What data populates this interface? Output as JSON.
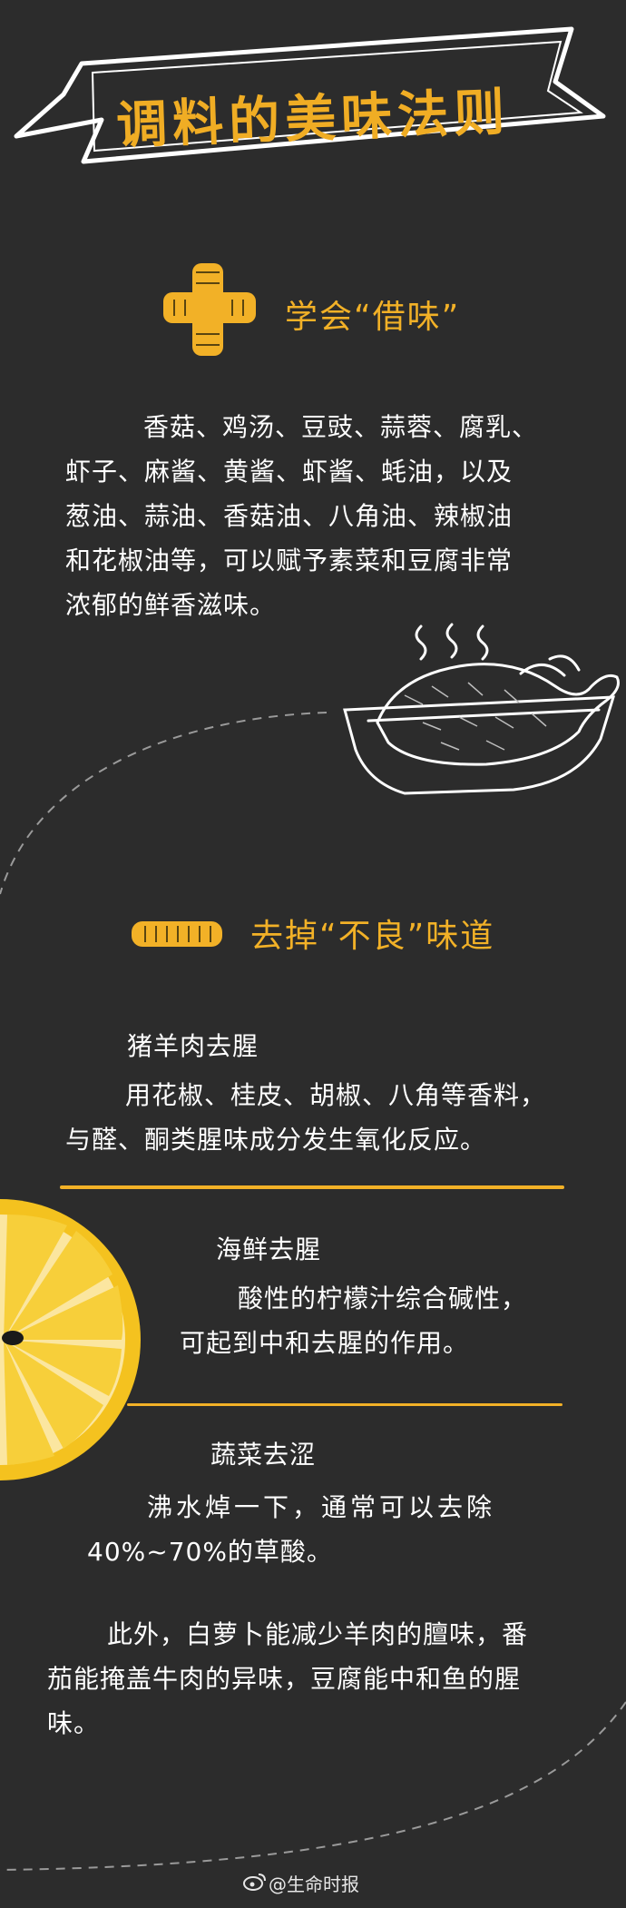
{
  "title": "调料的美味法则",
  "section1": {
    "heading": "学会“借味”",
    "lines": [
      "香菇、鸡汤、豆豉、蒜蓉、腐乳、",
      "虾子、麻酱、黄酱、虾酱、蚝油，以及",
      "葱油、蒜油、香菇油、八角油、辣椒油",
      "和花椒油等，可以赋予素菜和豆腐非常",
      "浓郁的鲜香滋味。"
    ]
  },
  "section2": {
    "heading": "去掉“不良”味道",
    "meat": {
      "title": "猪羊肉去腥",
      "lines": [
        "用花椒、桂皮、胡椒、八角等香料，",
        "与醛、酮类腥味成分发生氧化反应。"
      ]
    },
    "seafood": {
      "title": "海鲜去腥",
      "lines": [
        "酸性的柠檬汁综合碱性，",
        "可起到中和去腥的作用。"
      ]
    },
    "vegetable": {
      "title": "蔬菜去涩",
      "lines": [
        "沸水焯一下，通常可以去除",
        "40%~70%的草酸。"
      ]
    },
    "extra_lines": [
      "此外，白萝卜能减少羊肉的膻味，番",
      "茄能掩盖牛肉的异味，豆腐能中和鱼的腥",
      "味。"
    ]
  },
  "footer": {
    "text": "@生命时报",
    "icon": "weibo-icon"
  },
  "colors": {
    "background": "#2c2c2c",
    "accent": "#f2b127",
    "text": "#ffffff",
    "lemon": "#f4c21f"
  }
}
